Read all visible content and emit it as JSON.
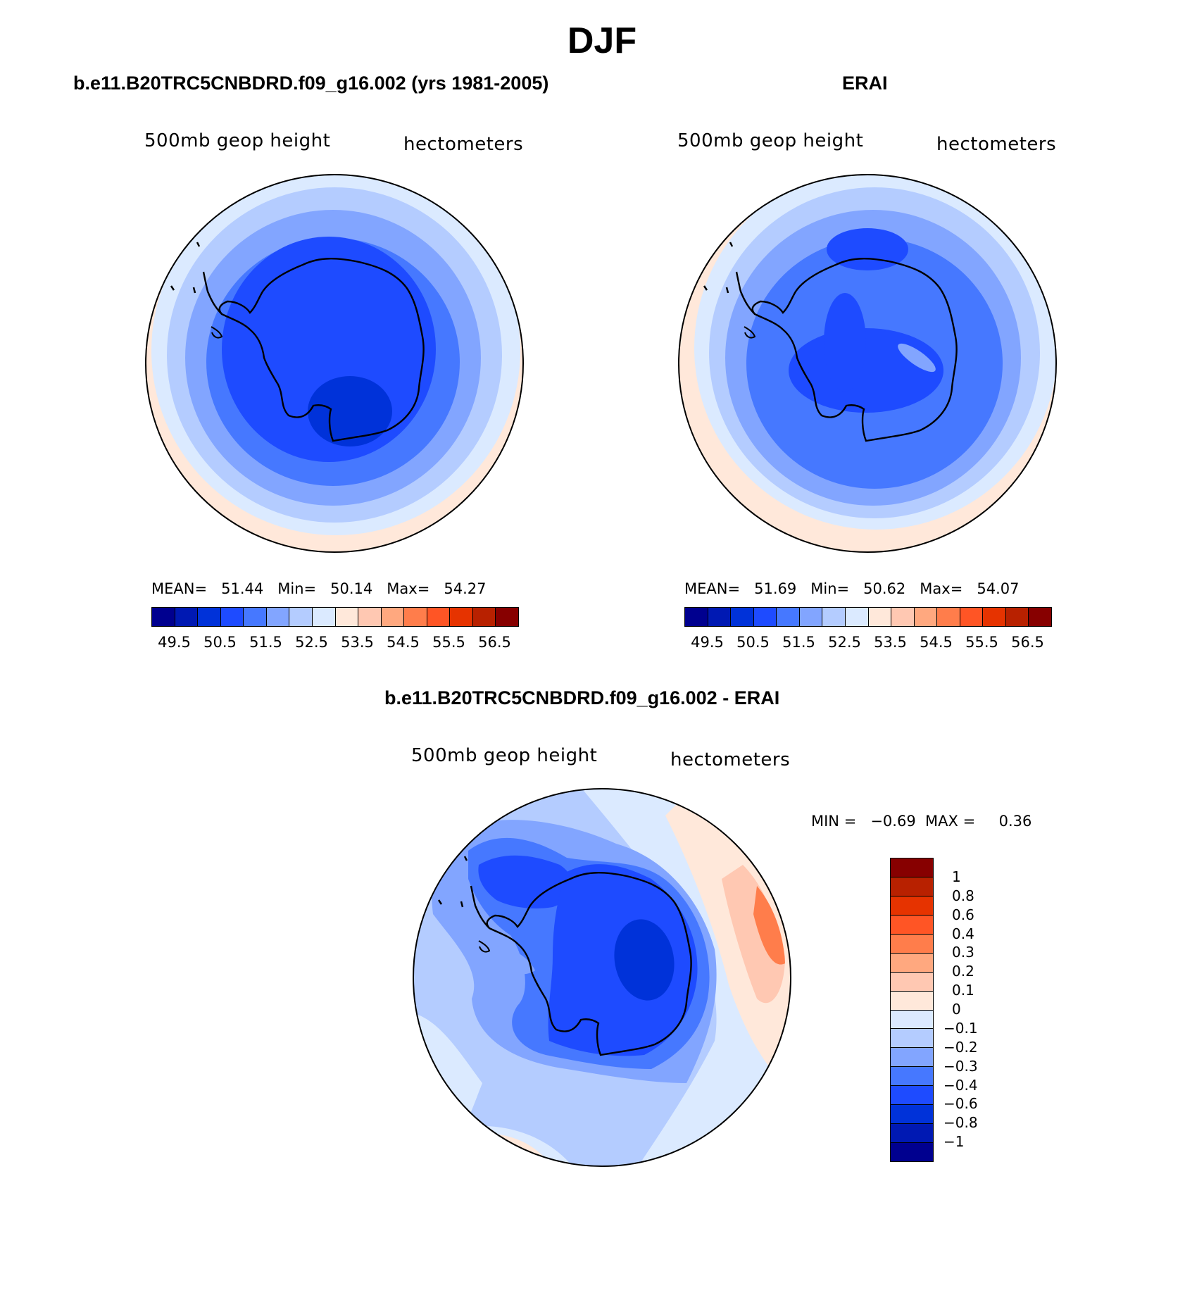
{
  "title": "DJF",
  "panels": [
    {
      "id": "model",
      "title": "b.e11.B20TRC5CNBDRD.f09_g16.002 (yrs 1981-2005)",
      "variable": "500mb geop height",
      "units": "hectometers",
      "stats": {
        "mean_label": "MEAN=",
        "mean": "51.44",
        "min_label": "Min=",
        "min": "50.14",
        "max_label": "Max=",
        "max": "54.27"
      }
    },
    {
      "id": "obs",
      "title": "ERAI",
      "variable": "500mb geop height",
      "units": "hectometers",
      "stats": {
        "mean_label": "MEAN=",
        "mean": "51.69",
        "min_label": "Min=",
        "min": "50.62",
        "max_label": "Max=",
        "max": "54.07"
      }
    },
    {
      "id": "diff",
      "title": "b.e11.B20TRC5CNBDRD.f09_g16.002 - ERAI",
      "variable": "500mb geop height",
      "units": "hectometers",
      "stats": {
        "min_label": "MIN =",
        "min": "−0.69",
        "max_label": "MAX =",
        "max": "0.36"
      }
    }
  ],
  "colorbar_abs": {
    "colors": [
      "#00008f",
      "#0019b3",
      "#0032d9",
      "#1e4bff",
      "#4678ff",
      "#82a5ff",
      "#b4ccff",
      "#dbeaff",
      "#ffe8da",
      "#ffc8b2",
      "#ffa87f",
      "#ff7d4b",
      "#ff5525",
      "#e63300",
      "#b82100",
      "#870000"
    ],
    "labels": [
      "49.5",
      "50.5",
      "51.5",
      "52.5",
      "53.5",
      "54.5",
      "55.5",
      "56.5"
    ]
  },
  "colorbar_diff": {
    "colors": [
      "#870000",
      "#b82100",
      "#e63300",
      "#ff5525",
      "#ff7d4b",
      "#ffa87f",
      "#ffc8b2",
      "#ffe8da",
      "#dbeaff",
      "#b4ccff",
      "#82a5ff",
      "#4678ff",
      "#1e4bff",
      "#0032d9",
      "#0019b3",
      "#00008f"
    ],
    "labels": [
      "1",
      "0.8",
      "0.6",
      "0.4",
      "0.3",
      "0.2",
      "0.1",
      "0",
      "−0.1",
      "−0.2",
      "−0.3",
      "−0.4",
      "−0.6",
      "−0.8",
      "−1"
    ]
  }
}
